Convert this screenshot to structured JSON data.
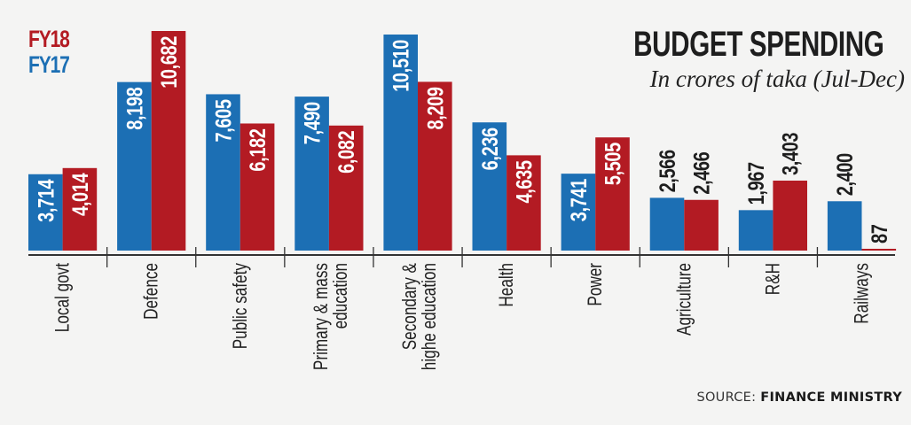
{
  "colors": {
    "fy17": "#1c6fb4",
    "fy18": "#b31b23",
    "axis": "#333333",
    "outside_label": "#1e1e1e",
    "inside_label": "#ffffff"
  },
  "legend": {
    "fy18": "FY18",
    "fy17": "FY17"
  },
  "header": {
    "title": "BUDGET SPENDING",
    "subtitle": "In crores of taka (Jul-Dec)"
  },
  "source": {
    "prefix": "SOURCE:",
    "name": "FINANCE MINISTRY"
  },
  "chart_data": {
    "type": "bar",
    "title": "BUDGET SPENDING",
    "subtitle": "In crores of taka (Jul-Dec)",
    "xlabel": "",
    "ylabel": "",
    "ylim": [
      0,
      11000
    ],
    "grid": false,
    "legend_position": "top-left",
    "categories": [
      "Local govt",
      "Defence",
      "Public safety",
      "Primary & mass\neducation",
      "Secondary &\nhighe education",
      "Health",
      "Power",
      "Agriculture",
      "R&H",
      "Railways"
    ],
    "series": [
      {
        "name": "FY17",
        "values": [
          3714,
          8198,
          7605,
          7490,
          10510,
          6236,
          3741,
          2566,
          1967,
          2400
        ],
        "labels": [
          "3,714",
          "8,198",
          "7,605",
          "7,490",
          "10,510",
          "6,236",
          "3,741",
          "2,566",
          "1,967",
          "2,400"
        ]
      },
      {
        "name": "FY18",
        "values": [
          4014,
          10682,
          6182,
          6082,
          8209,
          4635,
          5505,
          2466,
          3403,
          87
        ],
        "labels": [
          "4,014",
          "10,682",
          "6,182",
          "6,082",
          "8,209",
          "4,635",
          "5,505",
          "2,466",
          "3,403",
          "87"
        ]
      }
    ],
    "label_placement": {
      "FY17": [
        "inside",
        "inside",
        "inside",
        "inside",
        "inside",
        "inside",
        "inside",
        "outside",
        "outside",
        "outside"
      ],
      "FY18": [
        "inside",
        "inside",
        "inside",
        "inside",
        "inside",
        "inside",
        "inside",
        "outside",
        "outside",
        "outside"
      ]
    }
  }
}
